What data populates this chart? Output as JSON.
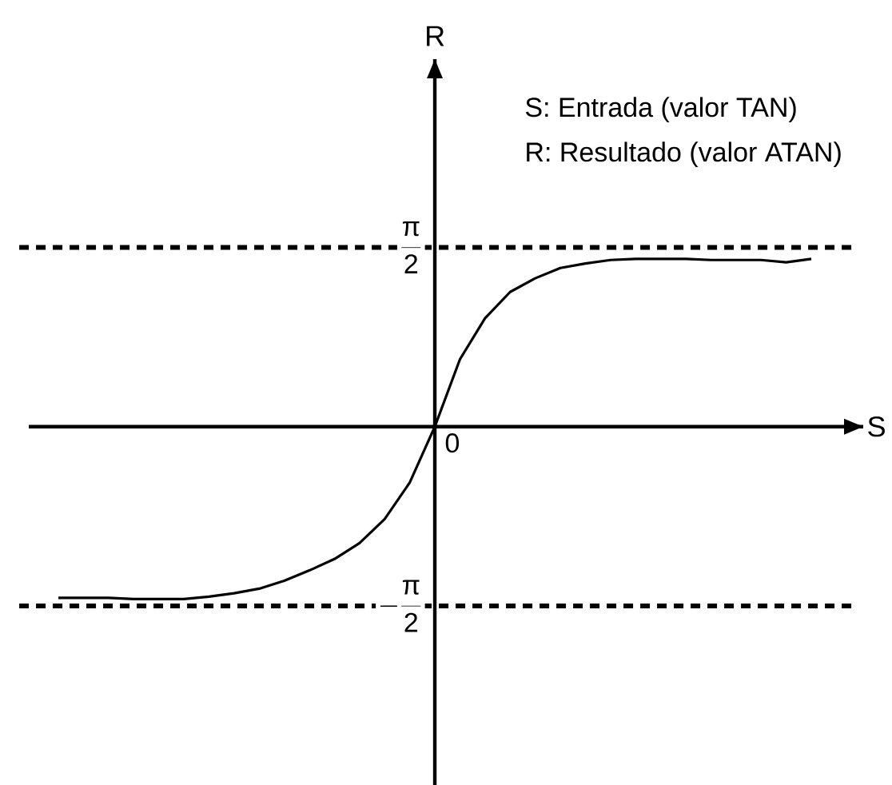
{
  "chart_data": {
    "type": "line",
    "xlabel": "S",
    "ylabel": "R",
    "annotations": [
      "S: Entrada (valor TAN)",
      "R: Resultado (valor ATAN)",
      "0"
    ],
    "categories": [
      null,
      null,
      null,
      null,
      null,
      null,
      null,
      null,
      null,
      null,
      null,
      null,
      null,
      null,
      null,
      null,
      null,
      null,
      null,
      null,
      null,
      null,
      null,
      null,
      null,
      null,
      null,
      null,
      null,
      null,
      null
    ],
    "series": [
      {
        "color": "#000000",
        "values": [
          -1.5,
          -1.5,
          -1.5,
          -1.51,
          -1.51,
          -1.51,
          -1.49,
          -1.46,
          -1.42,
          -1.35,
          -1.26,
          -1.16,
          -1.02,
          -0.81,
          -0.49,
          0,
          0.59,
          0.95,
          1.18,
          1.3,
          1.39,
          1.43,
          1.46,
          1.47,
          1.47,
          1.47,
          1.46,
          1.46,
          1.46,
          1.44,
          1.47
        ]
      }
    ],
    "ylim": [
      -3.14,
      3.22
    ],
    "yticks": [
      {
        "value": -1.5708,
        "label": "-\\frac{\\pi}{2}"
      },
      {
        "value": 1.5708,
        "label": "\\frac{\\pi}{2}"
      }
    ],
    "ref_lines": [
      {
        "axis": "y",
        "value": 1.5708,
        "color": "#000000",
        "line_style": "dashed"
      },
      {
        "axis": "y",
        "value": -1.5708,
        "color": "#000000",
        "line_style": "dashed"
      }
    ]
  }
}
